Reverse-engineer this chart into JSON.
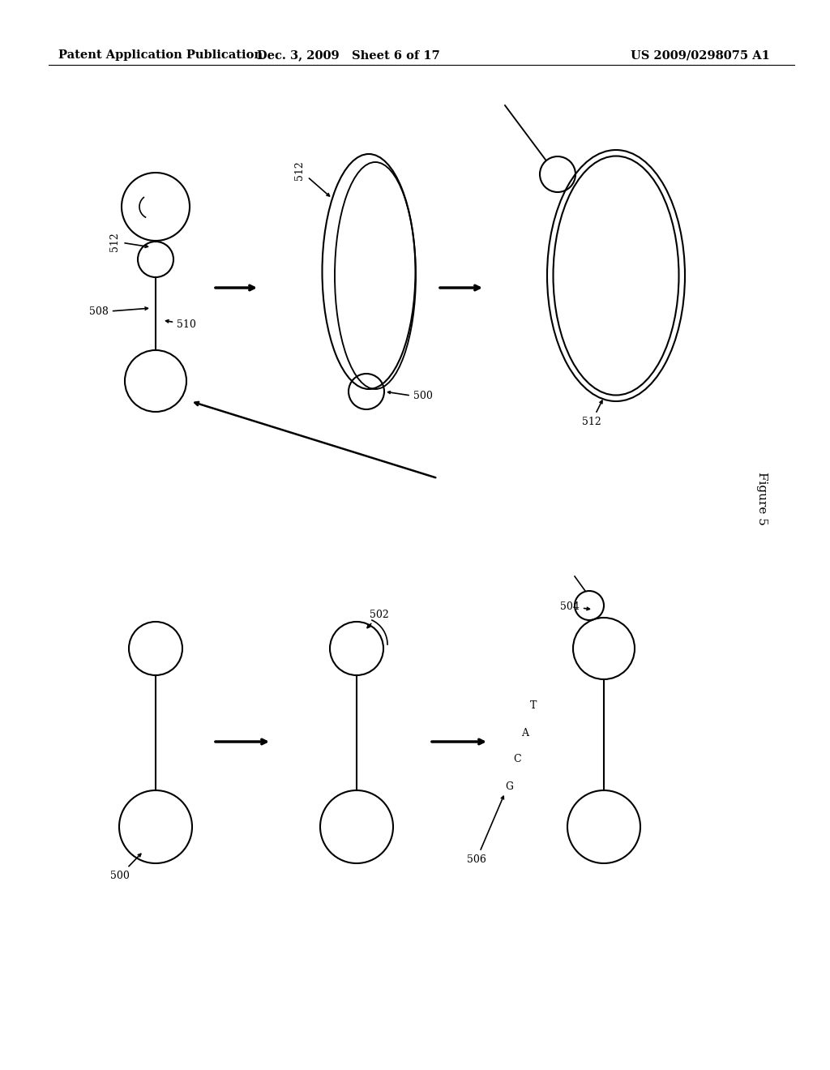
{
  "header_left": "Patent Application Publication",
  "header_mid": "Dec. 3, 2009   Sheet 6 of 17",
  "header_right": "US 2009/0298075 A1",
  "figure_label": "Figure 5",
  "bg_color": "#ffffff",
  "line_color": "#000000",
  "header_fontsize": 10.5,
  "label_fontsize": 9,
  "figure_label_fontsize": 11
}
